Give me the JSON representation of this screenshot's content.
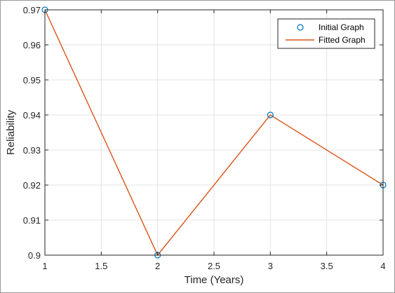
{
  "chart_data": {
    "type": "line",
    "title": "",
    "xlabel": "Time (Years)",
    "ylabel": "Reliability",
    "xlim": [
      1,
      4
    ],
    "ylim": [
      0.9,
      0.97
    ],
    "x_ticks": [
      "1",
      "1.5",
      "2",
      "2.5",
      "3",
      "3.5",
      "4"
    ],
    "y_ticks": [
      "0.9",
      "0.91",
      "0.92",
      "0.93",
      "0.94",
      "0.95",
      "0.96",
      "0.97"
    ],
    "grid": true,
    "legend_position": "top-right",
    "series": [
      {
        "name": "Initial Graph",
        "style": "markers",
        "marker": "circle",
        "color": "#0072bd",
        "x": [
          1,
          2,
          3,
          4
        ],
        "y": [
          0.97,
          0.9,
          0.94,
          0.92
        ]
      },
      {
        "name": "Fitted Graph",
        "style": "line",
        "color": "#d95319",
        "x": [
          1,
          2,
          3,
          4
        ],
        "y": [
          0.97,
          0.9,
          0.94,
          0.92
        ]
      }
    ]
  }
}
